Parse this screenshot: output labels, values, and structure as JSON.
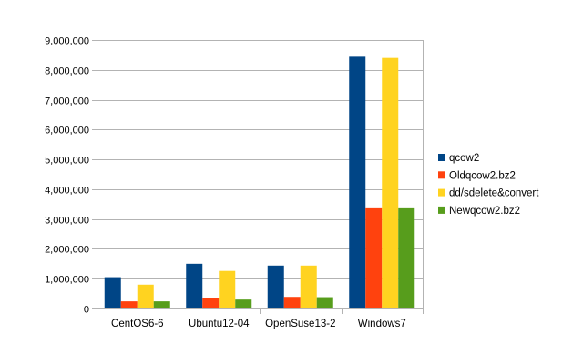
{
  "chart_data": {
    "type": "bar",
    "categories": [
      "CentOS6-6",
      "Ubuntu12-04",
      "OpenSuse13-2",
      "Windows7"
    ],
    "series": [
      {
        "name": "qcow2",
        "color": "#004586",
        "values": [
          1050000,
          1500000,
          1440000,
          8440000
        ]
      },
      {
        "name": "Oldqcow2.bz2",
        "color": "#ff420e",
        "values": [
          240000,
          360000,
          390000,
          3360000
        ]
      },
      {
        "name": "dd/sdelete&convert",
        "color": "#ffd320",
        "values": [
          800000,
          1260000,
          1440000,
          8400000
        ]
      },
      {
        "name": "Newqcow2.bz2",
        "color": "#579d1c",
        "values": [
          240000,
          300000,
          380000,
          3360000
        ]
      }
    ],
    "ylim": [
      0,
      9000000
    ],
    "yticks": [
      0,
      1000000,
      2000000,
      3000000,
      4000000,
      5000000,
      6000000,
      7000000,
      8000000,
      9000000
    ],
    "ytick_labels": [
      "0",
      "1,000,000",
      "2,000,000",
      "3,000,000",
      "4,000,000",
      "5,000,000",
      "6,000,000",
      "7,000,000",
      "8,000,000",
      "9,000,000"
    ],
    "grid": true,
    "legend_position": "right",
    "title": "",
    "xlabel": "",
    "ylabel": ""
  }
}
